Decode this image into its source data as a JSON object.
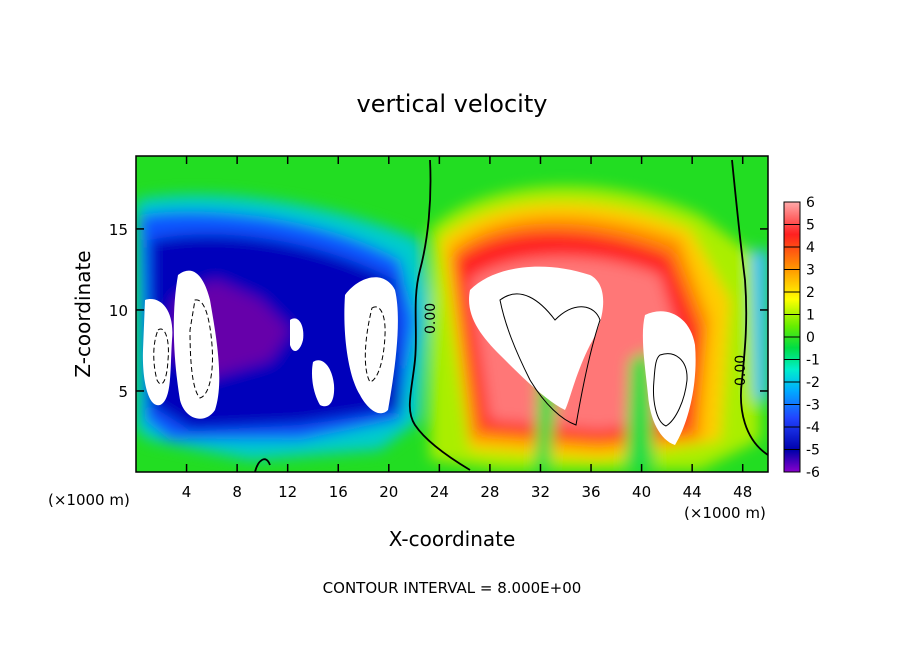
{
  "chart_data": {
    "type": "heatmap",
    "title": "vertical velocity",
    "xlabel": "X-coordinate",
    "ylabel": "Z-coordinate",
    "x_unit_left": "(×1000 m)",
    "x_unit_right": "(×1000 m)",
    "xlim": [
      0,
      50
    ],
    "ylim": [
      0,
      19.5
    ],
    "x_ticks": [
      4,
      8,
      12,
      16,
      20,
      24,
      28,
      32,
      36,
      40,
      44,
      48
    ],
    "y_ticks": [
      5,
      10,
      15
    ],
    "colorbar": {
      "range": [
        -6,
        6
      ],
      "ticks": [
        6,
        5,
        4,
        3,
        2,
        1,
        0,
        -1,
        -2,
        -3,
        -4,
        -5,
        -6
      ]
    },
    "contour_labels": [
      "0.00",
      "0.00"
    ],
    "footer": "CONTOUR INTERVAL = 8.000E+00"
  }
}
